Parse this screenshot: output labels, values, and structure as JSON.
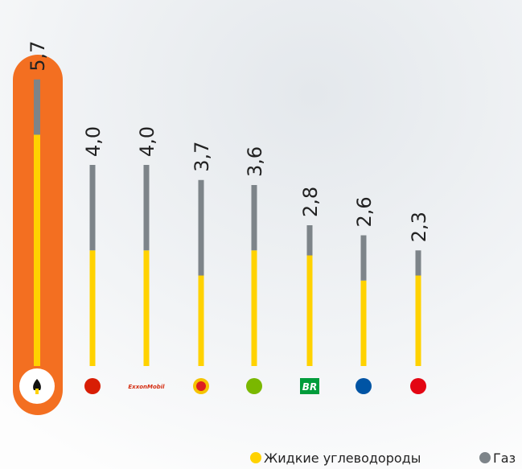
{
  "chart_data": {
    "type": "stacked-bar",
    "categories": [
      null,
      null,
      "ExxonMobil",
      null,
      null,
      "BR",
      null,
      null
    ],
    "series": [
      {
        "name": "Жидкие углеводороды",
        "color": "#ffd200",
        "values": [
          4.6,
          2.3,
          2.3,
          1.8,
          2.3,
          2.2,
          1.7,
          1.8
        ]
      },
      {
        "name": "Газ",
        "color": "#7d8489",
        "values": [
          1.1,
          1.7,
          1.7,
          1.9,
          1.3,
          0.6,
          0.9,
          0.5
        ]
      }
    ],
    "totals": {
      "values": [
        5.7,
        4.0,
        4.0,
        3.7,
        3.6,
        2.8,
        2.6,
        2.3
      ],
      "value_labels": [
        "5,7",
        "4,0",
        "4,0",
        "3,7",
        "3,6",
        "2,8",
        "2,6",
        "2,3"
      ]
    },
    "highlight_color": "#f36f21"
  }
}
